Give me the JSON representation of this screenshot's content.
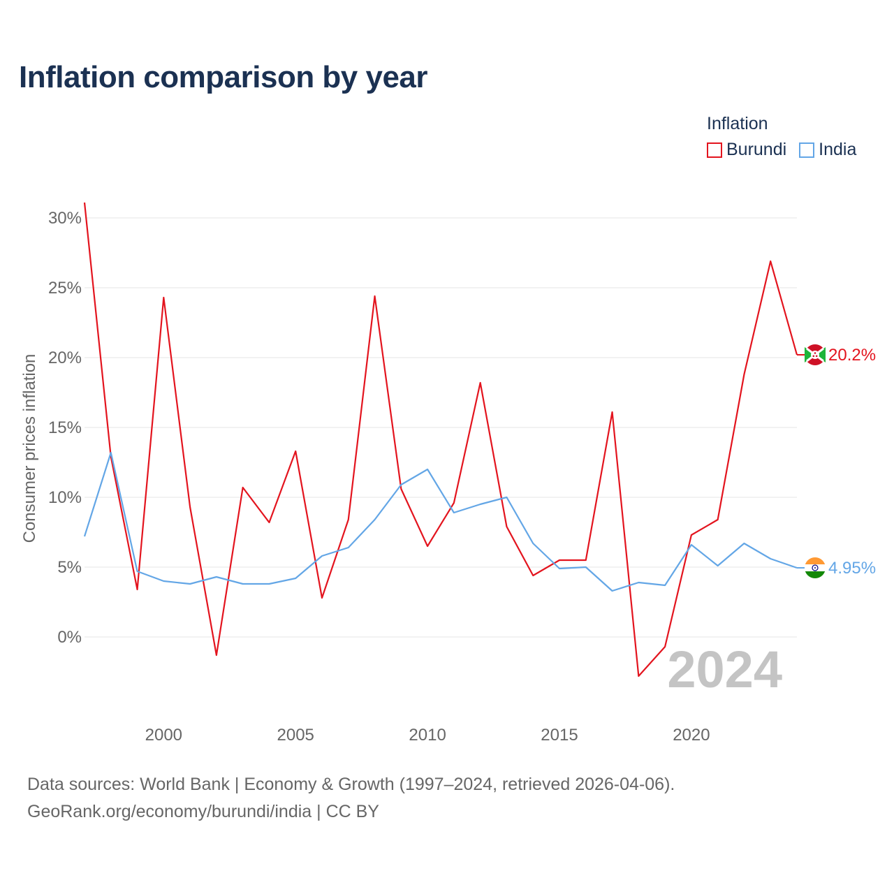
{
  "header": {
    "title": "Inflation comparison by year"
  },
  "legend": {
    "title": "Inflation",
    "items": [
      {
        "label": "Burundi",
        "color": "#e3141e"
      },
      {
        "label": "India",
        "color": "#63a6e6"
      }
    ]
  },
  "chart_data": {
    "type": "line",
    "title": "Inflation comparison by year",
    "xlabel": "",
    "ylabel": "Consumer prices inflation",
    "x": [
      1997,
      1998,
      1999,
      2000,
      2001,
      2002,
      2003,
      2004,
      2005,
      2006,
      2007,
      2008,
      2009,
      2010,
      2011,
      2012,
      2013,
      2014,
      2015,
      2016,
      2017,
      2018,
      2019,
      2020,
      2021,
      2022,
      2023,
      2024
    ],
    "xlim": [
      1997,
      2024
    ],
    "ylim": [
      -5.0,
      30.0
    ],
    "x_ticks": [
      2000,
      2005,
      2010,
      2015,
      2020
    ],
    "x_tick_labels": [
      "2000",
      "2005",
      "2010",
      "2015",
      "2020"
    ],
    "y_ticks": [
      0,
      5,
      10,
      15,
      20,
      25,
      30
    ],
    "y_tick_labels": [
      "0%",
      "5%",
      "10%",
      "15%",
      "20%",
      "25%",
      "30%"
    ],
    "grid": true,
    "legend_position": "top-right",
    "watermark": "2024",
    "series": [
      {
        "name": "Burundi",
        "color": "#e3141e",
        "values": [
          31.1,
          12.9,
          3.4,
          24.3,
          9.3,
          -1.3,
          10.7,
          8.2,
          13.3,
          2.8,
          8.4,
          24.4,
          10.6,
          6.5,
          9.6,
          18.2,
          7.9,
          4.4,
          5.5,
          5.5,
          16.1,
          -2.8,
          -0.7,
          7.3,
          8.4,
          18.8,
          26.9,
          20.2
        ],
        "end_label": "20.2%"
      },
      {
        "name": "India",
        "color": "#63a6e6",
        "values": [
          7.2,
          13.2,
          4.7,
          4.0,
          3.8,
          4.3,
          3.8,
          3.8,
          4.2,
          5.8,
          6.4,
          8.4,
          10.9,
          12.0,
          8.9,
          9.5,
          10.0,
          6.7,
          4.9,
          5.0,
          3.3,
          3.9,
          3.7,
          6.6,
          5.1,
          6.7,
          5.6,
          4.95
        ],
        "end_label": "4.95%"
      }
    ]
  },
  "footer": {
    "line1": "Data sources: World Bank | Economy & Growth (1997–2024, retrieved 2026-04-06).",
    "line2": "GeoRank.org/economy/burundi/india | CC BY"
  }
}
